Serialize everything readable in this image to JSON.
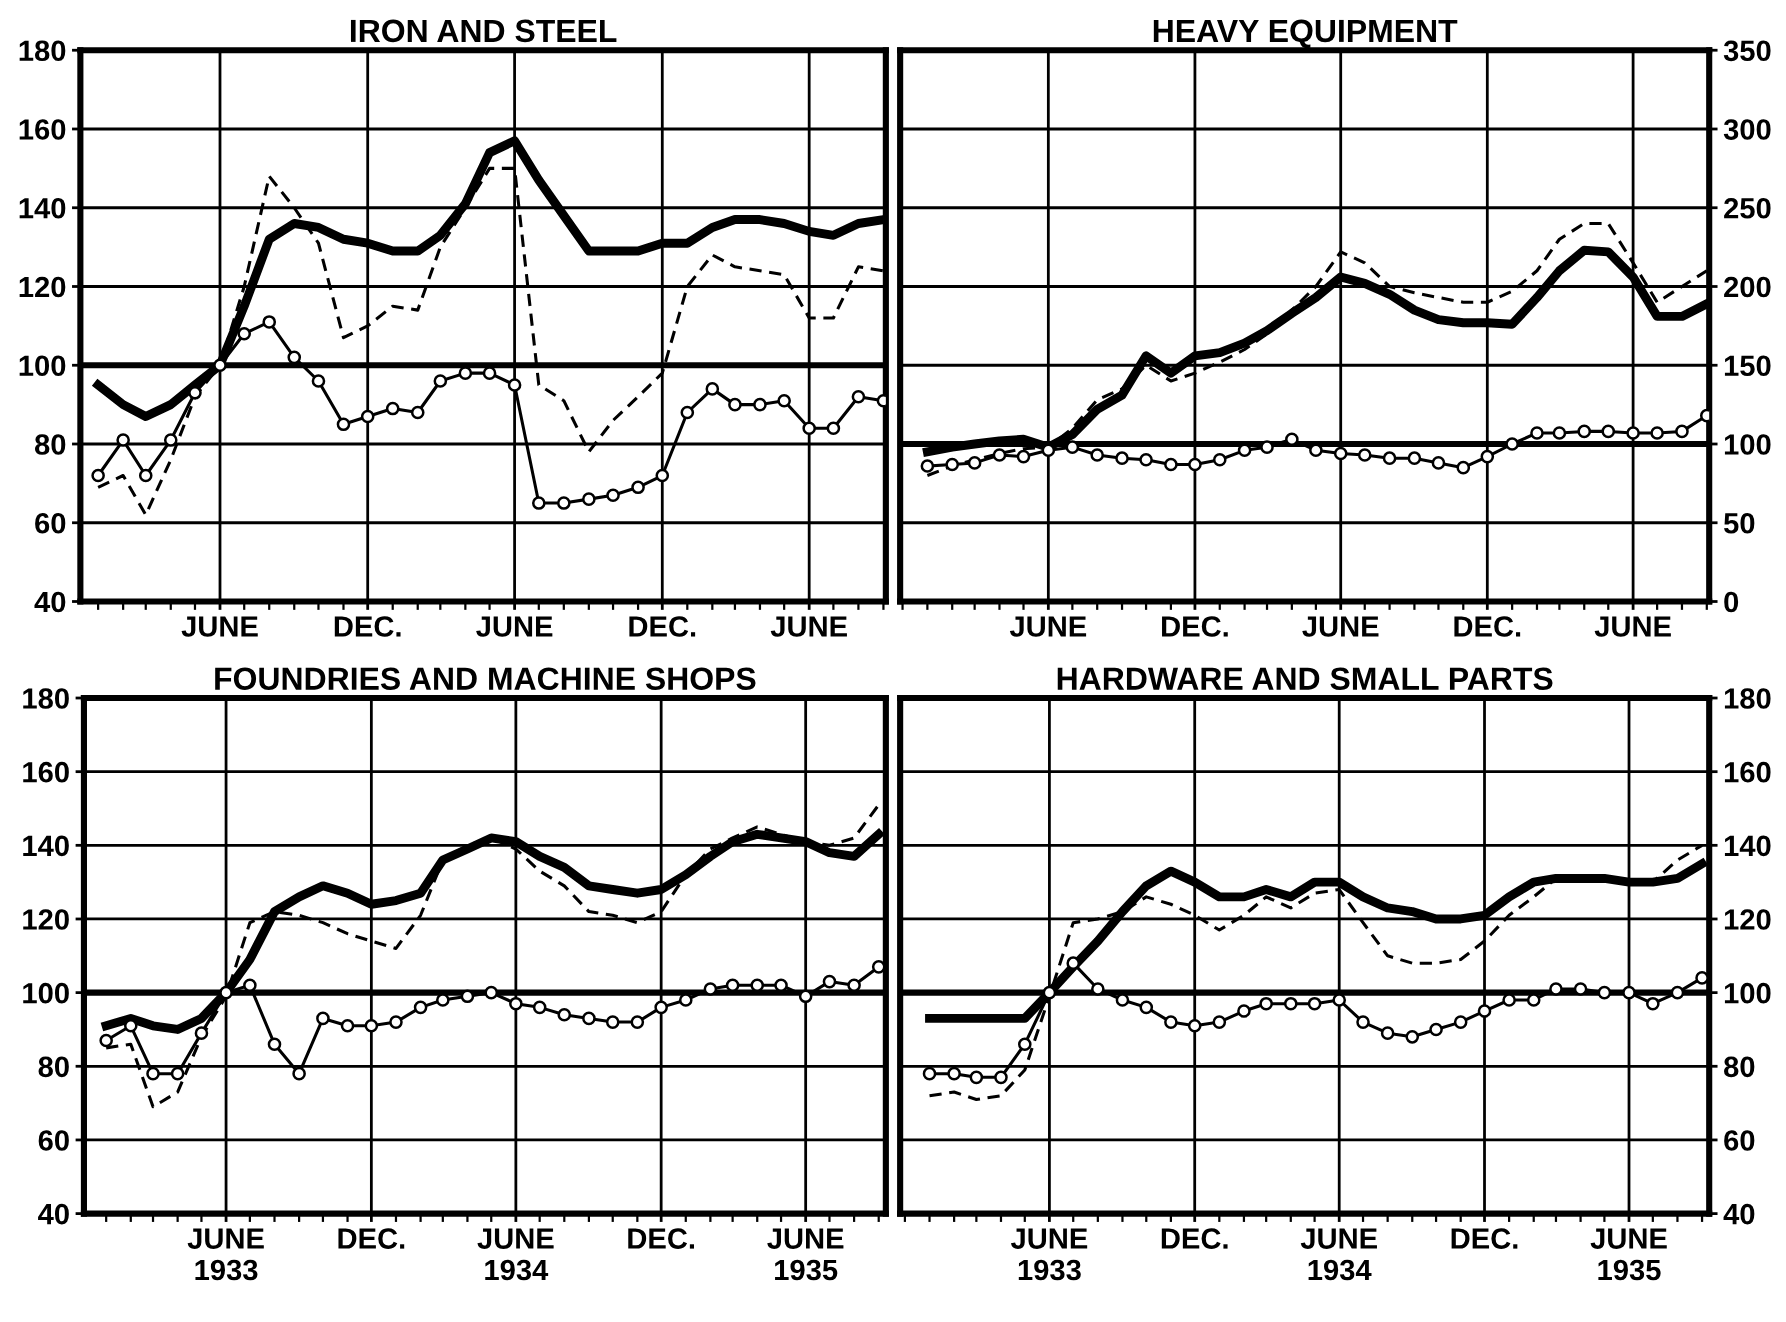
{
  "chart_data": [
    {
      "type": "line",
      "title": "IRON AND STEEL",
      "x": [
        "1933-01",
        "1933-02",
        "1933-03",
        "1933-04",
        "1933-05",
        "1933-06",
        "1933-07",
        "1933-08",
        "1933-09",
        "1933-10",
        "1933-11",
        "1933-12",
        "1934-01",
        "1934-02",
        "1934-03",
        "1934-04",
        "1934-05",
        "1934-06",
        "1934-07",
        "1934-08",
        "1934-09",
        "1934-10",
        "1934-11",
        "1934-12",
        "1935-01",
        "1935-02",
        "1935-03",
        "1935-04",
        "1935-05",
        "1935-06",
        "1935-07",
        "1935-08",
        "1935-09"
      ],
      "xlim": [
        "1932-12-10",
        "1935-09-04"
      ],
      "xticks": [
        {
          "value": "1933-06",
          "label": "JUNE"
        },
        {
          "value": "1933-12",
          "label": "DEC."
        },
        {
          "value": "1934-06",
          "label": "JUNE"
        },
        {
          "value": "1934-12",
          "label": "DEC."
        },
        {
          "value": "1935-06",
          "label": "JUNE"
        }
      ],
      "ylim": [
        40,
        180
      ],
      "yticks": [
        40,
        60,
        80,
        100,
        120,
        140,
        160,
        180
      ],
      "grid": true,
      "ref_lines": [
        {
          "axis": "y",
          "value": 100,
          "color": "#000000"
        }
      ],
      "series": [
        {
          "color": "#000000",
          "line_style": "solid",
          "marker": "none",
          "values": [
            95,
            90,
            87,
            90,
            95,
            100,
            115,
            132,
            136,
            135,
            132,
            131,
            129,
            129,
            133,
            141,
            154,
            157,
            147,
            138,
            129,
            129,
            129,
            131,
            131,
            135,
            137,
            137,
            136,
            134,
            133,
            136,
            137
          ]
        },
        {
          "color": "#000000",
          "line_style": "dashed",
          "marker": "none",
          "values": [
            69,
            72,
            62,
            76,
            92,
            100,
            120,
            148,
            140,
            131,
            107,
            110,
            115,
            114,
            130,
            140,
            150,
            150,
            95,
            91,
            78,
            86,
            92,
            98,
            120,
            128,
            125,
            124,
            123,
            112,
            112,
            125,
            124
          ]
        },
        {
          "color": "#000000",
          "line_style": "solid",
          "marker": "circle",
          "values": [
            72,
            81,
            72,
            81,
            93,
            100,
            108,
            111,
            102,
            96,
            85,
            87,
            89,
            88,
            96,
            98,
            98,
            95,
            65,
            65,
            66,
            67,
            69,
            72,
            88,
            94,
            90,
            90,
            91,
            84,
            84,
            92,
            91
          ]
        }
      ]
    },
    {
      "type": "line",
      "title": "HEAVY EQUIPMENT",
      "x": [
        "1933-01",
        "1933-02",
        "1933-03",
        "1933-04",
        "1933-05",
        "1933-06",
        "1933-07",
        "1933-08",
        "1933-09",
        "1933-10",
        "1933-11",
        "1933-12",
        "1934-01",
        "1934-02",
        "1934-03",
        "1934-04",
        "1934-05",
        "1934-06",
        "1934-07",
        "1934-08",
        "1934-09",
        "1934-10",
        "1934-11",
        "1934-12",
        "1935-01",
        "1935-02",
        "1935-03",
        "1935-04",
        "1935-05",
        "1935-06",
        "1935-07",
        "1935-08",
        "1935-09"
      ],
      "xlim": [
        "1932-11-28",
        "1935-09-04"
      ],
      "xticks": [
        {
          "value": "1933-06",
          "label": "JUNE"
        },
        {
          "value": "1933-12",
          "label": "DEC."
        },
        {
          "value": "1934-06",
          "label": "JUNE"
        },
        {
          "value": "1934-12",
          "label": "DEC."
        },
        {
          "value": "1935-06",
          "label": "JUNE"
        }
      ],
      "ylim": [
        0,
        350
      ],
      "yticks": [
        0,
        50,
        100,
        150,
        200,
        250,
        300,
        350
      ],
      "grid": true,
      "ref_lines": [
        {
          "axis": "y",
          "value": 100,
          "color": "#000000"
        }
      ],
      "series": [
        {
          "color": "#000000",
          "line_style": "solid",
          "marker": "none",
          "values": [
            95,
            98,
            100,
            102,
            103,
            98,
            106,
            122,
            131,
            156,
            145,
            156,
            158,
            164,
            172,
            183,
            193,
            206,
            202,
            195,
            185,
            179,
            177,
            177,
            176,
            193,
            210,
            223,
            222,
            206,
            181,
            181,
            189
          ]
        },
        {
          "color": "#000000",
          "line_style": "dashed",
          "marker": "none",
          "values": [
            80,
            86,
            90,
            94,
            97,
            98,
            110,
            128,
            135,
            150,
            140,
            145,
            152,
            160,
            170,
            185,
            200,
            222,
            215,
            200,
            196,
            193,
            190,
            190,
            197,
            210,
            230,
            240,
            240,
            215,
            190,
            200,
            210
          ]
        },
        {
          "color": "#000000",
          "line_style": "solid",
          "marker": "circle",
          "values": [
            86,
            87,
            88,
            93,
            92,
            96,
            98,
            93,
            91,
            90,
            87,
            87,
            90,
            96,
            98,
            103,
            96,
            94,
            93,
            91,
            91,
            88,
            85,
            92,
            100,
            107,
            107,
            108,
            108,
            107,
            107,
            108,
            118
          ]
        }
      ]
    },
    {
      "type": "line",
      "title": "FOUNDRIES AND MACHINE SHOPS",
      "x": [
        "1933-01",
        "1933-02",
        "1933-03",
        "1933-04",
        "1933-05",
        "1933-06",
        "1933-07",
        "1933-08",
        "1933-09",
        "1933-10",
        "1933-11",
        "1933-12",
        "1934-01",
        "1934-02",
        "1934-03",
        "1934-04",
        "1934-05",
        "1934-06",
        "1934-07",
        "1934-08",
        "1934-09",
        "1934-10",
        "1934-11",
        "1934-12",
        "1935-01",
        "1935-02",
        "1935-03",
        "1935-04",
        "1935-05",
        "1935-06",
        "1935-07",
        "1935-08",
        "1935-09"
      ],
      "xlim": [
        "1932-12-04",
        "1935-09-10"
      ],
      "xticks": [
        {
          "value": "1933-06",
          "label": "JUNE\n1933"
        },
        {
          "value": "1933-12",
          "label": "DEC."
        },
        {
          "value": "1934-06",
          "label": "JUNE\n1934"
        },
        {
          "value": "1934-12",
          "label": "DEC."
        },
        {
          "value": "1935-06",
          "label": "JUNE\n1935"
        }
      ],
      "ylim": [
        40,
        180
      ],
      "yticks": [
        40,
        60,
        80,
        100,
        120,
        140,
        160,
        180
      ],
      "grid": true,
      "ref_lines": [
        {
          "axis": "y",
          "value": 100,
          "color": "#000000"
        }
      ],
      "series": [
        {
          "color": "#000000",
          "line_style": "solid",
          "marker": "none",
          "values": [
            91,
            93,
            91,
            90,
            93,
            100,
            109,
            122,
            126,
            129,
            127,
            124,
            125,
            127,
            136,
            139,
            142,
            141,
            137,
            134,
            129,
            128,
            127,
            128,
            132,
            137,
            141,
            143,
            142,
            141,
            138,
            137,
            143
          ]
        },
        {
          "color": "#000000",
          "line_style": "dashed",
          "marker": "none",
          "values": [
            85,
            86,
            69,
            73,
            88,
            99,
            119,
            122,
            121,
            119,
            116,
            114,
            112,
            121,
            136,
            140,
            142,
            139,
            133,
            129,
            122,
            121,
            119,
            122,
            132,
            139,
            142,
            145,
            143,
            141,
            140,
            142,
            151
          ]
        },
        {
          "color": "#000000",
          "line_style": "solid",
          "marker": "circle",
          "values": [
            87,
            91,
            78,
            78,
            89,
            100,
            102,
            86,
            78,
            93,
            91,
            91,
            92,
            96,
            98,
            99,
            100,
            97,
            96,
            94,
            93,
            92,
            92,
            96,
            98,
            101,
            102,
            102,
            102,
            99,
            103,
            102,
            107
          ]
        }
      ]
    },
    {
      "type": "line",
      "title": "HARDWARE AND SMALL PARTS",
      "x": [
        "1933-01",
        "1933-02",
        "1933-03",
        "1933-04",
        "1933-05",
        "1933-06",
        "1933-07",
        "1933-08",
        "1933-09",
        "1933-10",
        "1933-11",
        "1933-12",
        "1934-01",
        "1934-02",
        "1934-03",
        "1934-04",
        "1934-05",
        "1934-06",
        "1934-07",
        "1934-08",
        "1934-09",
        "1934-10",
        "1934-11",
        "1934-12",
        "1935-01",
        "1935-02",
        "1935-03",
        "1935-04",
        "1935-05",
        "1935-06",
        "1935-07",
        "1935-08",
        "1935-09"
      ],
      "xlim": [
        "1932-11-25",
        "1935-09-10"
      ],
      "xticks": [
        {
          "value": "1933-06",
          "label": "JUNE\n1933"
        },
        {
          "value": "1933-12",
          "label": "DEC."
        },
        {
          "value": "1934-06",
          "label": "JUNE\n1934"
        },
        {
          "value": "1934-12",
          "label": "DEC."
        },
        {
          "value": "1935-06",
          "label": "JUNE\n1935"
        }
      ],
      "ylim": [
        40,
        180
      ],
      "yticks": [
        40,
        60,
        80,
        100,
        120,
        140,
        160,
        180
      ],
      "grid": true,
      "ref_lines": [
        {
          "axis": "y",
          "value": 100,
          "color": "#000000"
        }
      ],
      "series": [
        {
          "color": "#000000",
          "line_style": "solid",
          "marker": "none",
          "values": [
            93,
            93,
            93,
            93,
            93,
            100,
            107,
            114,
            122,
            129,
            133,
            130,
            126,
            126,
            128,
            126,
            130,
            130,
            126,
            123,
            122,
            120,
            120,
            121,
            126,
            130,
            131,
            131,
            131,
            130,
            130,
            131,
            135
          ]
        },
        {
          "color": "#000000",
          "line_style": "dashed",
          "marker": "none",
          "values": [
            72,
            73,
            71,
            72,
            79,
            99,
            119,
            120,
            122,
            126,
            124,
            121,
            117,
            121,
            126,
            123,
            127,
            128,
            119,
            110,
            108,
            108,
            109,
            114,
            121,
            126,
            131,
            131,
            131,
            130,
            130,
            136,
            140
          ]
        },
        {
          "color": "#000000",
          "line_style": "solid",
          "marker": "circle",
          "values": [
            78,
            78,
            77,
            77,
            86,
            100,
            108,
            101,
            98,
            96,
            92,
            91,
            92,
            95,
            97,
            97,
            97,
            98,
            92,
            89,
            88,
            90,
            92,
            95,
            98,
            98,
            101,
            101,
            100,
            100,
            97,
            100,
            104
          ]
        }
      ]
    }
  ]
}
